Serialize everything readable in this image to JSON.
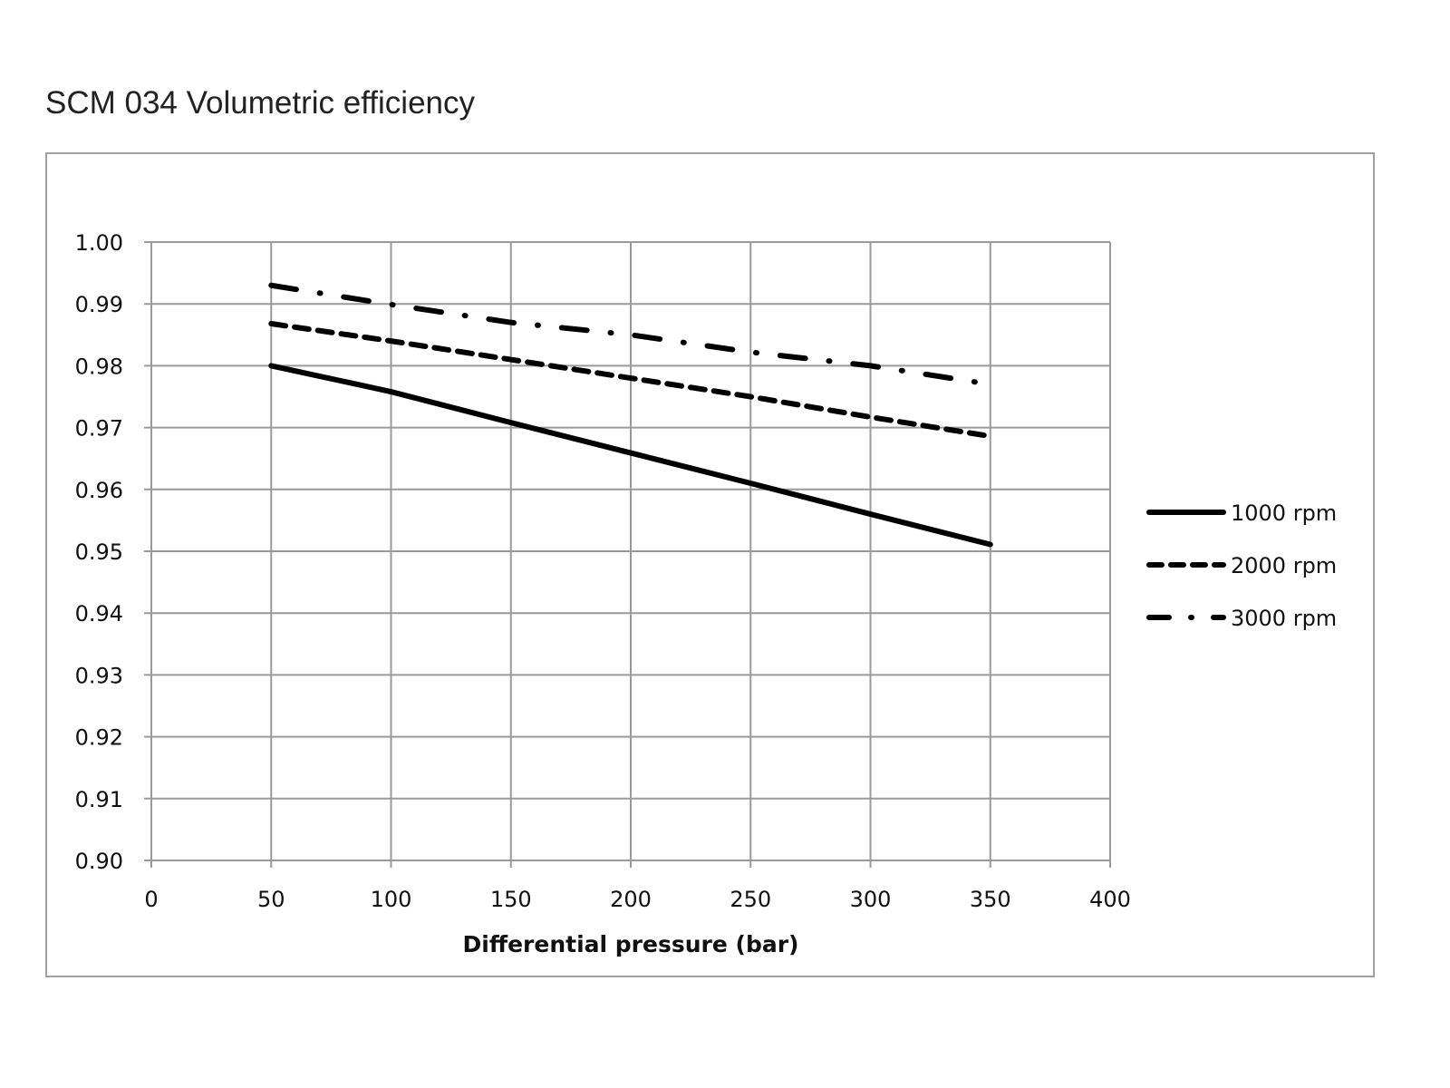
{
  "chart_data": {
    "type": "line",
    "title": "SCM 034 Volumetric efficiency",
    "xlabel": "Differential pressure (bar)",
    "ylabel": "",
    "xlim": [
      0,
      400
    ],
    "ylim": [
      0.9,
      1.0
    ],
    "xticks": [
      "0",
      "50",
      "100",
      "150",
      "200",
      "250",
      "300",
      "350",
      "400"
    ],
    "yticks": [
      "0.90",
      "0.91",
      "0.92",
      "0.93",
      "0.94",
      "0.95",
      "0.96",
      "0.97",
      "0.98",
      "0.99",
      "1.00"
    ],
    "grid": true,
    "legend_position": "right",
    "x": [
      50,
      100,
      150,
      200,
      250,
      300,
      350
    ],
    "series": [
      {
        "name": "1000 rpm",
        "style": "solid",
        "values": [
          0.98,
          0.9758,
          0.9708,
          0.9659,
          0.961,
          0.956,
          0.9511
        ]
      },
      {
        "name": "2000 rpm",
        "style": "dashed",
        "values": [
          0.9868,
          0.984,
          0.981,
          0.978,
          0.975,
          0.9717,
          0.9686
        ]
      },
      {
        "name": "3000 rpm",
        "style": "dash-dot",
        "values": [
          0.993,
          0.9899,
          0.987,
          0.985,
          0.9822,
          0.98,
          0.977
        ]
      }
    ],
    "colors": {
      "line": "#000000",
      "grid": "#9a9a9a",
      "frame": "#a0a0a0"
    }
  }
}
